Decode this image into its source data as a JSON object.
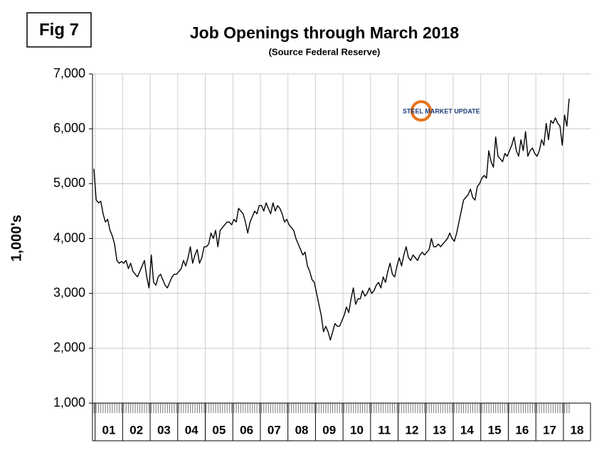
{
  "figure_label": "Fig 7",
  "logo_text": "STEEL MARKET UPDATE",
  "chart_data": {
    "type": "line",
    "title": "Job Openings through March 2018",
    "subtitle": "(Source Federal Reserve)",
    "y_label": "1,000's",
    "color": "#000000",
    "grid": true,
    "ylim": [
      1000,
      7000
    ],
    "yticks": [
      {
        "value": 1000,
        "label": "1,000"
      },
      {
        "value": 2000,
        "label": "2,000"
      },
      {
        "value": 3000,
        "label": "3,000"
      },
      {
        "value": 4000,
        "label": "4,000"
      },
      {
        "value": 5000,
        "label": "5,000"
      },
      {
        "value": 6000,
        "label": "6,000"
      },
      {
        "value": 7000,
        "label": "7,000"
      }
    ],
    "categories": [
      null,
      null,
      null,
      null,
      null,
      null,
      "01",
      null,
      null,
      null,
      null,
      null,
      null,
      null,
      null,
      null,
      null,
      null,
      "02",
      null,
      null,
      null,
      null,
      null,
      null,
      null,
      null,
      null,
      null,
      null,
      "03",
      null,
      null,
      null,
      null,
      null,
      null,
      null,
      null,
      null,
      null,
      null,
      "04",
      null,
      null,
      null,
      null,
      null,
      null,
      null,
      null,
      null,
      null,
      null,
      "05",
      null,
      null,
      null,
      null,
      null,
      null,
      null,
      null,
      null,
      null,
      null,
      "06",
      null,
      null,
      null,
      null,
      null,
      null,
      null,
      null,
      null,
      null,
      null,
      "07",
      null,
      null,
      null,
      null,
      null,
      null,
      null,
      null,
      null,
      null,
      null,
      "08",
      null,
      null,
      null,
      null,
      null,
      null,
      null,
      null,
      null,
      null,
      null,
      "09",
      null,
      null,
      null,
      null,
      null,
      null,
      null,
      null,
      null,
      null,
      null,
      "10",
      null,
      null,
      null,
      null,
      null,
      null,
      null,
      null,
      null,
      null,
      null,
      "11",
      null,
      null,
      null,
      null,
      null,
      null,
      null,
      null,
      null,
      null,
      null,
      "12",
      null,
      null,
      null,
      null,
      null,
      null,
      null,
      null,
      null,
      null,
      null,
      "13",
      null,
      null,
      null,
      null,
      null,
      null,
      null,
      null,
      null,
      null,
      null,
      "14",
      null,
      null,
      null,
      null,
      null,
      null,
      null,
      null,
      null,
      null,
      null,
      "15",
      null,
      null,
      null,
      null,
      null,
      null,
      null,
      null,
      null,
      null,
      null,
      "16",
      null,
      null,
      null,
      null,
      null,
      null,
      null,
      null,
      null,
      null,
      null,
      "17",
      null,
      null,
      null,
      null,
      null,
      null,
      null,
      "18",
      null
    ],
    "values": [
      5270,
      4700,
      4650,
      4680,
      4450,
      4300,
      4350,
      4150,
      4050,
      3900,
      3600,
      3550,
      3580,
      3550,
      3600,
      3450,
      3550,
      3400,
      3350,
      3300,
      3400,
      3500,
      3600,
      3300,
      3100,
      3700,
      3200,
      3150,
      3300,
      3350,
      3250,
      3150,
      3100,
      3200,
      3300,
      3350,
      3350,
      3400,
      3450,
      3600,
      3500,
      3650,
      3850,
      3550,
      3700,
      3800,
      3550,
      3650,
      3850,
      3850,
      3900,
      4100,
      4000,
      4150,
      3850,
      4150,
      4200,
      4250,
      4300,
      4300,
      4250,
      4350,
      4300,
      4550,
      4500,
      4450,
      4300,
      4100,
      4300,
      4400,
      4500,
      4450,
      4600,
      4600,
      4500,
      4650,
      4550,
      4450,
      4650,
      4500,
      4600,
      4550,
      4450,
      4300,
      4350,
      4250,
      4200,
      4150,
      4000,
      3900,
      3800,
      3700,
      3750,
      3500,
      3400,
      3250,
      3200,
      3000,
      2800,
      2600,
      2300,
      2400,
      2300,
      2150,
      2300,
      2450,
      2400,
      2400,
      2500,
      2600,
      2750,
      2650,
      2900,
      3100,
      2800,
      2900,
      2900,
      3050,
      2950,
      3000,
      3100,
      3000,
      3050,
      3150,
      3200,
      3100,
      3300,
      3200,
      3400,
      3550,
      3350,
      3300,
      3500,
      3650,
      3500,
      3700,
      3850,
      3650,
      3600,
      3700,
      3650,
      3600,
      3700,
      3750,
      3700,
      3750,
      3800,
      4000,
      3850,
      3850,
      3900,
      3850,
      3900,
      3950,
      4000,
      4100,
      4000,
      3950,
      4100,
      4300,
      4500,
      4700,
      4750,
      4800,
      4900,
      4750,
      4700,
      4950,
      5000,
      5100,
      5150,
      5100,
      5600,
      5400,
      5300,
      5850,
      5500,
      5450,
      5400,
      5550,
      5500,
      5600,
      5700,
      5850,
      5600,
      5500,
      5800,
      5600,
      5950,
      5500,
      5600,
      5650,
      5550,
      5500,
      5600,
      5800,
      5700,
      6100,
      5800,
      6150,
      6100,
      6200,
      6100,
      6050,
      5700,
      6250,
      6050,
      6550
    ]
  }
}
